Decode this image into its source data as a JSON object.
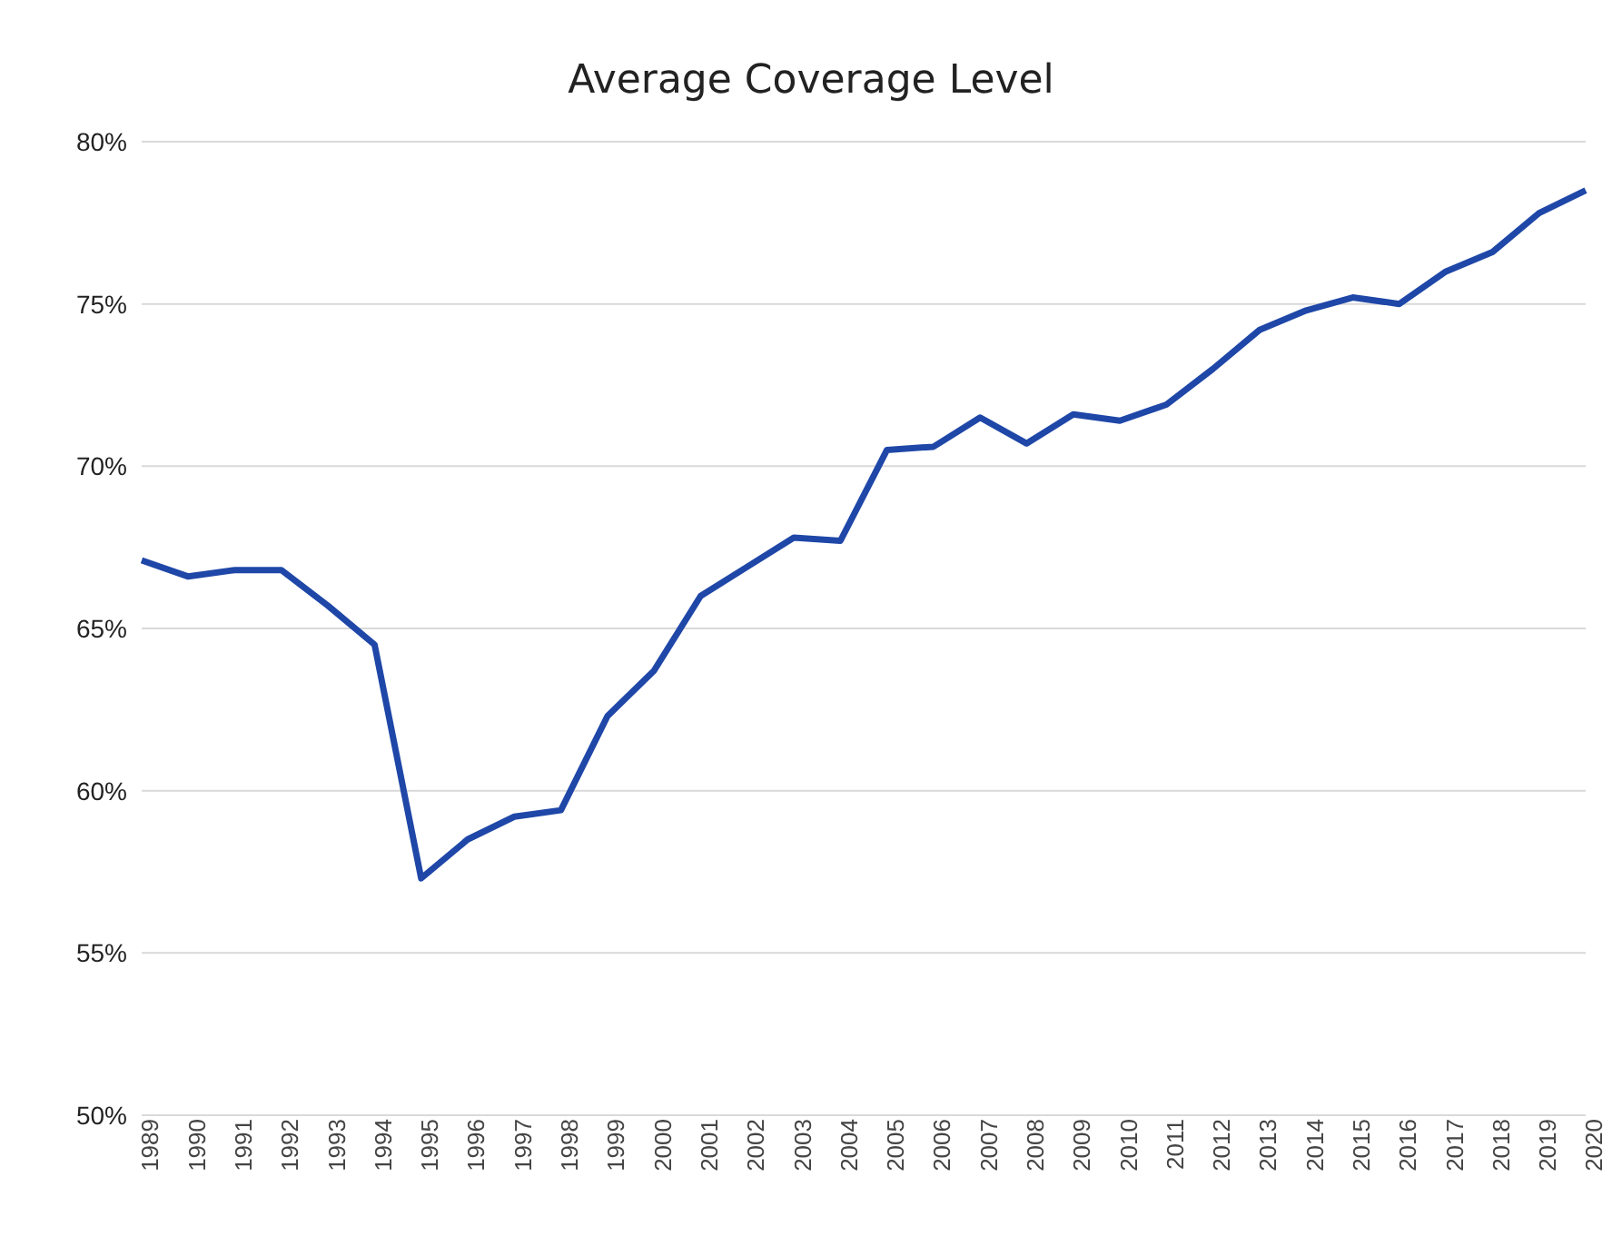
{
  "chart_data": {
    "type": "line",
    "title": "Average Coverage Level",
    "categories": [
      "1989",
      "1990",
      "1991",
      "1992",
      "1993",
      "1994",
      "1995",
      "1996",
      "1997",
      "1998",
      "1999",
      "2000",
      "2001",
      "2002",
      "2003",
      "2004",
      "2005",
      "2006",
      "2007",
      "2008",
      "2009",
      "2010",
      "2011",
      "2012",
      "2013",
      "2014",
      "2015",
      "2016",
      "2017",
      "2018",
      "2019",
      "2020"
    ],
    "series": [
      {
        "color": "#1f47a8",
        "values": [
          67.1,
          66.6,
          66.8,
          66.8,
          65.7,
          64.5,
          57.3,
          58.5,
          59.2,
          59.4,
          62.3,
          63.7,
          66.0,
          66.9,
          67.8,
          67.7,
          70.5,
          70.6,
          71.5,
          70.7,
          71.6,
          71.4,
          71.9,
          73.0,
          74.2,
          74.8,
          75.2,
          75.0,
          76.0,
          76.6,
          77.8,
          78.5
        ]
      }
    ],
    "ylim": [
      50,
      80
    ],
    "yticks": [
      {
        "value": 50,
        "label": "50%"
      },
      {
        "value": 55,
        "label": "55%"
      },
      {
        "value": 60,
        "label": "60%"
      },
      {
        "value": 65,
        "label": "65%"
      },
      {
        "value": 70,
        "label": "70%"
      },
      {
        "value": 75,
        "label": "75%"
      },
      {
        "value": 80,
        "label": "80%"
      }
    ],
    "grid": "y",
    "marker": "none",
    "line_style": "solid"
  }
}
